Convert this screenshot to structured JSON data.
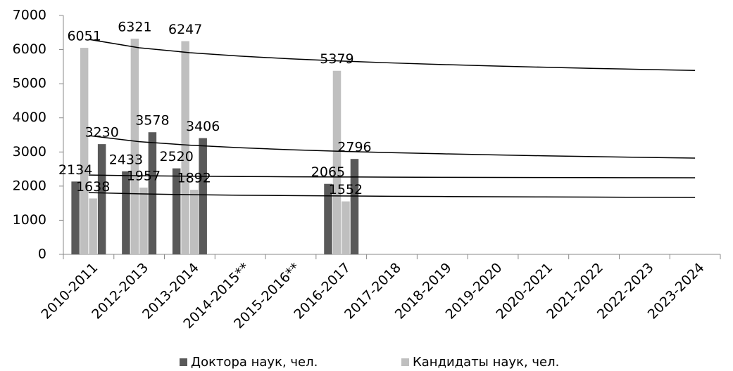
{
  "chart_data": {
    "type": "bar",
    "categories": [
      "2010-2011",
      "2012-2013",
      "2013-2014",
      "2014-2015**",
      "2015-2016**",
      "2016-2017",
      "2017-2018",
      "2018-2019",
      "2019-2020",
      "2020-2021",
      "2021-2022",
      "2022-2023",
      "2023-2024"
    ],
    "series": [
      {
        "name": "Доктора наук, чел.",
        "color": "#595959",
        "values": [
          2134,
          2433,
          2520,
          null,
          null,
          2065,
          null,
          null,
          null,
          null,
          null,
          null,
          null
        ],
        "trend": [
          2325,
          2303,
          2290,
          2281,
          2273,
          2268,
          2263,
          2258,
          2255,
          2251,
          2248,
          2246,
          2243
        ]
      },
      {
        "name": "Кандидаты наук, чел.",
        "color": "#bfbfbf",
        "values": [
          6051,
          6321,
          6247,
          null,
          null,
          5379,
          null,
          null,
          null,
          null,
          null,
          null,
          null
        ],
        "trend": [
          6300,
          6054,
          5910,
          5808,
          5729,
          5664,
          5609,
          5562,
          5520,
          5483,
          5449,
          5418,
          5390
        ]
      },
      {
        "color": "#bfbfbf",
        "values": [
          1638,
          1957,
          1892,
          null,
          null,
          1552,
          null,
          null,
          null,
          null,
          null,
          null,
          null
        ],
        "trend": [
          1811,
          1772,
          1749,
          1733,
          1721,
          1711,
          1702,
          1695,
          1688,
          1682,
          1677,
          1672,
          1667
        ]
      },
      {
        "color": "#595959",
        "values": [
          3230,
          3578,
          3406,
          null,
          null,
          2796,
          null,
          null,
          null,
          null,
          null,
          null,
          null
        ],
        "trend": [
          3480,
          3302,
          3198,
          3124,
          3066,
          3020,
          2980,
          2946,
          2915,
          2888,
          2864,
          2841,
          2820
        ]
      }
    ],
    "ylim": [
      0,
      7000
    ],
    "yticks": [
      0,
      1000,
      2000,
      3000,
      4000,
      5000,
      6000,
      7000
    ],
    "grid": false,
    "legend": "bottom"
  }
}
